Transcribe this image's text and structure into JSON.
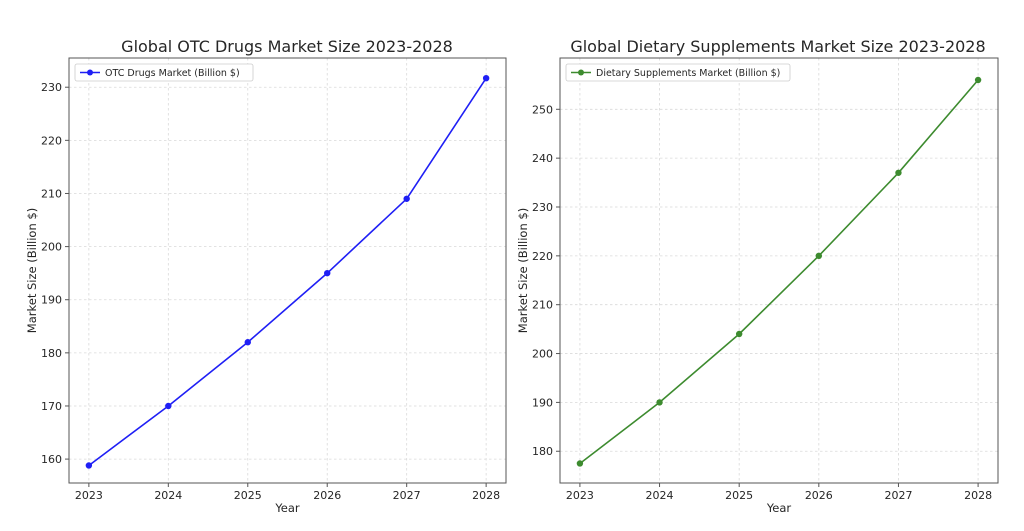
{
  "chart_data": [
    {
      "type": "line",
      "title": "Global OTC Drugs Market Size 2023-2028",
      "xlabel": "Year",
      "ylabel": "Market Size (Billion $)",
      "x": [
        2023,
        2024,
        2025,
        2026,
        2027,
        2028
      ],
      "x_tick_labels": [
        "2023",
        "2024",
        "2025",
        "2026",
        "2027",
        "2028"
      ],
      "xlim": [
        2022.75,
        2028.25
      ],
      "ylim": [
        155.5,
        235.5
      ],
      "y_ticks": [
        160,
        170,
        180,
        190,
        200,
        210,
        220,
        230
      ],
      "y_tick_labels": [
        "160",
        "170",
        "180",
        "190",
        "200",
        "210",
        "220",
        "230"
      ],
      "series": [
        {
          "name": "OTC Drugs Market (Billion $)",
          "values": [
            158.8,
            170,
            182,
            195,
            209,
            231.7
          ],
          "color": "#1f1ff5"
        }
      ],
      "grid": true,
      "legend_position": "top-left"
    },
    {
      "type": "line",
      "title": "Global Dietary Supplements Market Size 2023-2028",
      "xlabel": "Year",
      "ylabel": "Market Size (Billion $)",
      "x": [
        2023,
        2024,
        2025,
        2026,
        2027,
        2028
      ],
      "x_tick_labels": [
        "2023",
        "2024",
        "2025",
        "2026",
        "2027",
        "2028"
      ],
      "xlim": [
        2022.75,
        2028.25
      ],
      "ylim": [
        173.5,
        260.5
      ],
      "y_ticks": [
        180,
        190,
        200,
        210,
        220,
        230,
        240,
        250
      ],
      "y_tick_labels": [
        "180",
        "190",
        "200",
        "210",
        "220",
        "230",
        "240",
        "250"
      ],
      "series": [
        {
          "name": "Dietary Supplements Market (Billion $)",
          "values": [
            177.5,
            190,
            204,
            220,
            237,
            256
          ],
          "color": "#3d8b2f"
        }
      ],
      "grid": true,
      "legend_position": "top-left"
    }
  ]
}
